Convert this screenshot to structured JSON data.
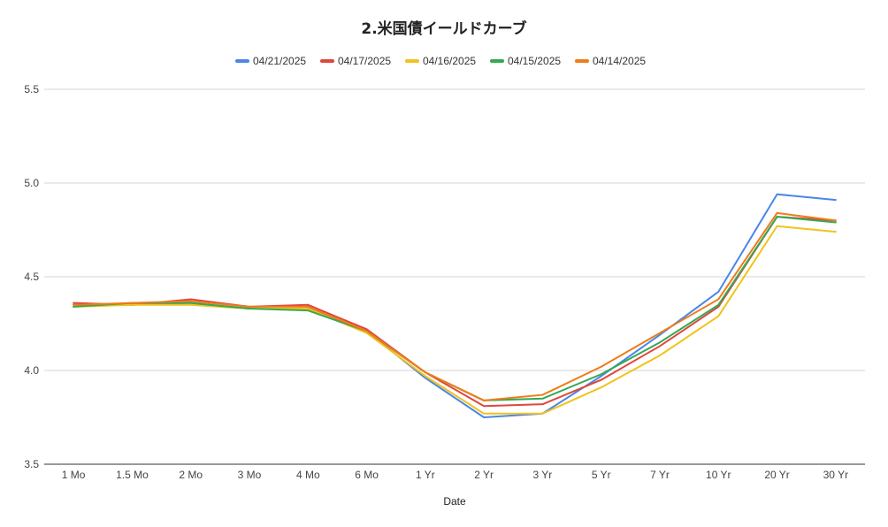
{
  "chart_data": {
    "type": "line",
    "title": "2.米国債イールドカーブ",
    "xlabel": "Date",
    "ylabel": "",
    "categories": [
      "1 Mo",
      "1.5 Mo",
      "2 Mo",
      "3 Mo",
      "4 Mo",
      "6 Mo",
      "1 Yr",
      "2 Yr",
      "3 Yr",
      "5 Yr",
      "7 Yr",
      "10 Yr",
      "20 Yr",
      "30 Yr"
    ],
    "ylim": [
      3.5,
      5.5
    ],
    "yticks": [
      "3.5",
      "4.0",
      "4.5",
      "5.0",
      "5.5"
    ],
    "legend_position": "top",
    "grid": true,
    "series": [
      {
        "name": "04/21/2025",
        "color": "#4a86e8",
        "values": [
          4.35,
          4.35,
          4.36,
          4.33,
          4.33,
          4.21,
          3.96,
          3.75,
          3.77,
          3.97,
          4.19,
          4.42,
          4.94,
          4.91
        ]
      },
      {
        "name": "04/17/2025",
        "color": "#e0463a",
        "values": [
          4.36,
          4.35,
          4.38,
          4.34,
          4.35,
          4.22,
          3.99,
          3.81,
          3.82,
          3.95,
          4.13,
          4.34,
          4.82,
          4.8
        ]
      },
      {
        "name": "04/16/2025",
        "color": "#f1c21b",
        "values": [
          4.34,
          4.35,
          4.35,
          4.33,
          4.33,
          4.2,
          3.97,
          3.77,
          3.77,
          3.91,
          4.08,
          4.29,
          4.77,
          4.74
        ]
      },
      {
        "name": "04/15/2025",
        "color": "#34a853",
        "values": [
          4.34,
          4.36,
          4.36,
          4.33,
          4.32,
          4.21,
          3.99,
          3.84,
          3.85,
          3.98,
          4.15,
          4.35,
          4.82,
          4.79
        ]
      },
      {
        "name": "04/14/2025",
        "color": "#ef7b1a",
        "values": [
          4.35,
          4.36,
          4.37,
          4.34,
          4.34,
          4.21,
          3.99,
          3.84,
          3.87,
          4.02,
          4.2,
          4.38,
          4.84,
          4.8
        ]
      }
    ]
  }
}
